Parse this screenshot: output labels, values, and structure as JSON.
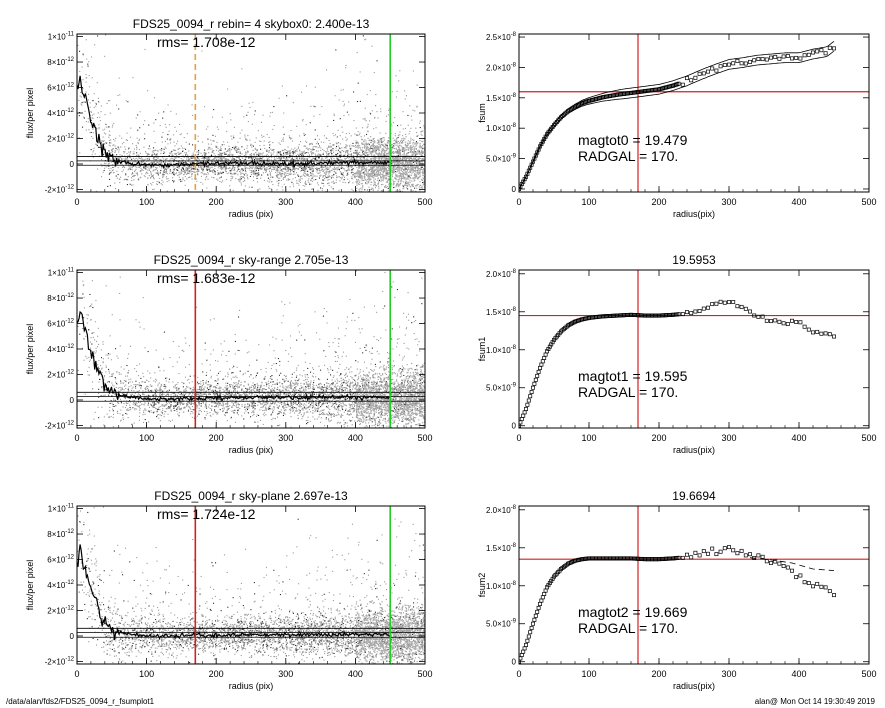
{
  "footer": {
    "path": "/data/alan/fds2/FDS25_0094_r_fsumplot1",
    "stamp": "alan@  Mon Oct 14 19:30:49 2019"
  },
  "chart_data": [
    {
      "type": "scatter",
      "title": "FDS25_0094_r rebin= 4    skybox0:  2.400e-13",
      "annotation": "rms= 1.708e-12",
      "xlabel": "radius (pix)",
      "ylabel": "flux/per pixel",
      "xlim": [
        0,
        500
      ],
      "ylim": [
        -2.2e-12,
        1.02e-11
      ],
      "xticks": [
        0,
        100,
        200,
        300,
        400,
        500
      ],
      "xticklabels": [
        "0",
        "100",
        "200",
        "300",
        "400",
        "500"
      ],
      "yticks": [
        -2e-12,
        0,
        2e-12,
        4e-12,
        6e-12,
        8e-12,
        1e-11
      ],
      "yticklabels": [
        [
          "-2×10",
          "-12"
        ],
        [
          "0",
          ""
        ],
        [
          "2×10",
          "-12"
        ],
        [
          "4×10",
          "-12"
        ],
        [
          "6×10",
          "-12"
        ],
        [
          "8×10",
          "-12"
        ],
        [
          "1×10",
          "-11"
        ]
      ],
      "vlines": [
        {
          "x": 170,
          "color": "#e8a040",
          "style": "dashed"
        },
        {
          "x": 450,
          "color": "#22cc22",
          "style": "solid"
        }
      ],
      "hlines": [
        2.4e-13,
        -1e-13,
        5.8e-13
      ],
      "profile": {
        "x": [
          0,
          5,
          10,
          15,
          20,
          25,
          30,
          35,
          40,
          45,
          50,
          60,
          70,
          80,
          100,
          130,
          170,
          220,
          300,
          400,
          450
        ],
        "y": [
          6e-12,
          6.8e-12,
          5.6e-12,
          4.6e-12,
          3.6e-12,
          2.8e-12,
          2.1e-12,
          1.5e-12,
          1.1e-12,
          8e-13,
          5e-13,
          2e-13,
          1e-13,
          0,
          -5e-14,
          -1e-13,
          0,
          1e-13,
          0,
          1e-13,
          1e-13
        ]
      },
      "scatter_spread_model": {
        "base": 1.2e-12,
        "inner": 4e-12,
        "scale": 35
      },
      "colors": {
        "scatter": "#9a9a9a",
        "dark": "#2a2a2a"
      }
    },
    {
      "type": "line",
      "title": "",
      "xlabel": "radius(pix)",
      "ylabel": "fsum",
      "xlim": [
        0,
        500
      ],
      "ylim": [
        -5e-10,
        2.55e-08
      ],
      "xticks": [
        0,
        100,
        200,
        300,
        400,
        500
      ],
      "xticklabels": [
        "0",
        "100",
        "200",
        "300",
        "400",
        "500"
      ],
      "yticks": [
        0,
        5e-09,
        1e-08,
        1.5e-08,
        2e-08,
        2.5e-08
      ],
      "yticklabels": [
        [
          "0",
          ""
        ],
        [
          "5.0×10",
          "-9"
        ],
        [
          "1.0×10",
          "-8"
        ],
        [
          "1.5×10",
          "-8"
        ],
        [
          "2.0×10",
          "-8"
        ],
        [
          "2.5×10",
          "-8"
        ]
      ],
      "vline": 170,
      "hline": 1.6e-08,
      "text_lines": [
        "magtot0 =  19.479",
        "RADGAL =    170."
      ],
      "curve": {
        "x": [
          0,
          10,
          20,
          30,
          40,
          50,
          60,
          70,
          80,
          90,
          100,
          120,
          140,
          160,
          180,
          200,
          220,
          240,
          260,
          280,
          300,
          320,
          340,
          360,
          380,
          400,
          420,
          440,
          450
        ],
        "y": [
          0,
          2e-09,
          4.5e-09,
          7e-09,
          9e-09,
          1.05e-08,
          1.18e-08,
          1.28e-08,
          1.35e-08,
          1.41e-08,
          1.45e-08,
          1.51e-08,
          1.55e-08,
          1.58e-08,
          1.61e-08,
          1.64e-08,
          1.7e-08,
          1.78e-08,
          1.88e-08,
          1.97e-08,
          2.05e-08,
          2.08e-08,
          2.12e-08,
          2.14e-08,
          2.16e-08,
          2.16e-08,
          2.22e-08,
          2.26e-08,
          2.35e-08
        ]
      },
      "envelope": 8e-10
    },
    {
      "type": "scatter",
      "title": "FDS25_0094_r sky-range  2.705e-13",
      "annotation": "rms= 1.683e-12",
      "xlabel": "radius (pix)",
      "ylabel": "flux/per pixel",
      "xlim": [
        0,
        500
      ],
      "ylim": [
        -2.2e-12,
        1.02e-11
      ],
      "xticks": [
        0,
        100,
        200,
        300,
        400,
        500
      ],
      "xticklabels": [
        "0",
        "100",
        "200",
        "300",
        "400",
        "500"
      ],
      "yticks": [
        -2e-12,
        0,
        2e-12,
        4e-12,
        6e-12,
        8e-12,
        1e-11
      ],
      "yticklabels": [
        [
          "-2×10",
          "-12"
        ],
        [
          "0",
          ""
        ],
        [
          "2×10",
          "-12"
        ],
        [
          "4×10",
          "-12"
        ],
        [
          "6×10",
          "-12"
        ],
        [
          "8×10",
          "-12"
        ],
        [
          "1×10",
          "-11"
        ]
      ],
      "vlines": [
        {
          "x": 170,
          "color": "#d42020",
          "style": "solid"
        },
        {
          "x": 450,
          "color": "#22cc22",
          "style": "solid"
        }
      ],
      "hlines": [
        2.7e-13,
        -1e-13,
        6e-13
      ],
      "profile": {
        "x": [
          0,
          5,
          10,
          15,
          20,
          25,
          30,
          35,
          40,
          45,
          50,
          60,
          70,
          80,
          100,
          130,
          170,
          220,
          300,
          400,
          450
        ],
        "y": [
          6.2e-12,
          7e-12,
          5.8e-12,
          4.8e-12,
          3.8e-12,
          3e-12,
          2.3e-12,
          1.7e-12,
          1.3e-12,
          1e-12,
          7e-13,
          4e-13,
          3e-13,
          2e-13,
          1e-13,
          5e-14,
          1e-13,
          2e-13,
          2e-13,
          2e-13,
          2e-13
        ]
      },
      "scatter_spread_model": {
        "base": 1.2e-12,
        "inner": 4e-12,
        "scale": 35
      },
      "colors": {
        "scatter": "#9a9a9a",
        "dark": "#2a2a2a"
      }
    },
    {
      "type": "line",
      "title": "19.5953",
      "xlabel": "radius(pix)",
      "ylabel": "fsum1",
      "xlim": [
        0,
        500
      ],
      "ylim": [
        -3e-10,
        2.05e-08
      ],
      "xticks": [
        0,
        100,
        200,
        300,
        400,
        500
      ],
      "xticklabels": [
        "0",
        "100",
        "200",
        "300",
        "400",
        "500"
      ],
      "yticks": [
        0,
        5e-09,
        1e-08,
        1.5e-08,
        2e-08
      ],
      "yticklabels": [
        [
          "0",
          ""
        ],
        [
          "5.0×10",
          "-9"
        ],
        [
          "1.0×10",
          "-8"
        ],
        [
          "1.5×10",
          "-8"
        ],
        [
          "2.0×10",
          "-8"
        ]
      ],
      "vline": 170,
      "hline": 1.45e-08,
      "text_lines": [
        "magtot1 =  19.595",
        "RADGAL =    170."
      ],
      "curve": {
        "x": [
          0,
          10,
          20,
          30,
          40,
          50,
          60,
          70,
          80,
          90,
          100,
          120,
          140,
          160,
          180,
          200,
          220,
          240,
          260,
          280,
          300,
          320,
          340,
          360,
          380,
          400,
          420,
          440,
          450
        ],
        "y": [
          0,
          2.2e-09,
          5e-09,
          7.6e-09,
          9.8e-09,
          1.13e-08,
          1.24e-08,
          1.32e-08,
          1.37e-08,
          1.4e-08,
          1.42e-08,
          1.44e-08,
          1.45e-08,
          1.46e-08,
          1.45e-08,
          1.45e-08,
          1.46e-08,
          1.48e-08,
          1.54e-08,
          1.6e-08,
          1.62e-08,
          1.56e-08,
          1.45e-08,
          1.38e-08,
          1.35e-08,
          1.38e-08,
          1.25e-08,
          1.2e-08,
          1.2e-08
        ]
      },
      "envelope": 0
    },
    {
      "type": "scatter",
      "title": "FDS25_0094_r sky-plane  2.697e-13",
      "annotation": "rms= 1.724e-12",
      "xlabel": "radius (pix)",
      "ylabel": "flux/per pixel",
      "xlim": [
        0,
        500
      ],
      "ylim": [
        -2.2e-12,
        1.02e-11
      ],
      "xticks": [
        0,
        100,
        200,
        300,
        400,
        500
      ],
      "xticklabels": [
        "0",
        "100",
        "200",
        "300",
        "400",
        "500"
      ],
      "yticks": [
        -2e-12,
        0,
        2e-12,
        4e-12,
        6e-12,
        8e-12,
        1e-11
      ],
      "yticklabels": [
        [
          "-2×10",
          "-12"
        ],
        [
          "0",
          ""
        ],
        [
          "2×10",
          "-12"
        ],
        [
          "4×10",
          "-12"
        ],
        [
          "6×10",
          "-12"
        ],
        [
          "8×10",
          "-12"
        ],
        [
          "1×10",
          "-11"
        ]
      ],
      "vlines": [
        {
          "x": 170,
          "color": "#d42020",
          "style": "solid"
        },
        {
          "x": 450,
          "color": "#22cc22",
          "style": "solid"
        }
      ],
      "hlines": [
        2.7e-13,
        -1e-13,
        6e-13
      ],
      "profile": {
        "x": [
          0,
          5,
          10,
          15,
          20,
          25,
          30,
          35,
          40,
          45,
          50,
          60,
          70,
          80,
          100,
          130,
          170,
          220,
          300,
          400,
          450
        ],
        "y": [
          6e-12,
          6.9e-12,
          5.7e-12,
          4.7e-12,
          3.7e-12,
          2.9e-12,
          2.2e-12,
          1.6e-12,
          1.2e-12,
          9e-13,
          6e-13,
          3e-13,
          2e-13,
          1e-13,
          0,
          0,
          5e-14,
          1e-13,
          1e-13,
          1e-13,
          1e-13
        ]
      },
      "scatter_spread_model": {
        "base": 1.2e-12,
        "inner": 4e-12,
        "scale": 35
      },
      "colors": {
        "scatter": "#9a9a9a",
        "dark": "#2a2a2a"
      }
    },
    {
      "type": "line",
      "title": "19.6694",
      "xlabel": "radius(pix)",
      "ylabel": "fsum2",
      "xlim": [
        0,
        500
      ],
      "ylim": [
        -3e-10,
        2.05e-08
      ],
      "xticks": [
        0,
        100,
        200,
        300,
        400,
        500
      ],
      "xticklabels": [
        "0",
        "100",
        "200",
        "300",
        "400",
        "500"
      ],
      "yticks": [
        0,
        5e-09,
        1e-08,
        1.5e-08,
        2e-08
      ],
      "yticklabels": [
        [
          "0",
          ""
        ],
        [
          "5.0×10",
          "-9"
        ],
        [
          "1.0×10",
          "-8"
        ],
        [
          "1.5×10",
          "-8"
        ],
        [
          "2.0×10",
          "-8"
        ]
      ],
      "vline": 170,
      "hline": 1.35e-08,
      "text_lines": [
        "magtot2 =  19.669",
        "RADGAL =    170."
      ],
      "curve": {
        "x": [
          0,
          10,
          20,
          30,
          40,
          50,
          60,
          70,
          80,
          90,
          100,
          120,
          140,
          160,
          180,
          200,
          220,
          240,
          260,
          280,
          300,
          320,
          340,
          360,
          380,
          400,
          420,
          440,
          450
        ],
        "y": [
          0,
          2.2e-09,
          5e-09,
          7.6e-09,
          9.8e-09,
          1.12e-08,
          1.22e-08,
          1.29e-08,
          1.33e-08,
          1.35e-08,
          1.36e-08,
          1.36e-08,
          1.36e-08,
          1.36e-08,
          1.35e-08,
          1.35e-08,
          1.36e-08,
          1.38e-08,
          1.42e-08,
          1.46e-08,
          1.5e-08,
          1.44e-08,
          1.38e-08,
          1.33e-08,
          1.25e-08,
          1.12e-08,
          1e-08,
          9.5e-09,
          9e-09
        ]
      },
      "dashed": {
        "x": [
          330,
          360,
          390,
          420,
          450
        ],
        "y": [
          1.37e-08,
          1.34e-08,
          1.3e-08,
          1.22e-08,
          1.2e-08
        ]
      },
      "envelope": 0
    }
  ]
}
